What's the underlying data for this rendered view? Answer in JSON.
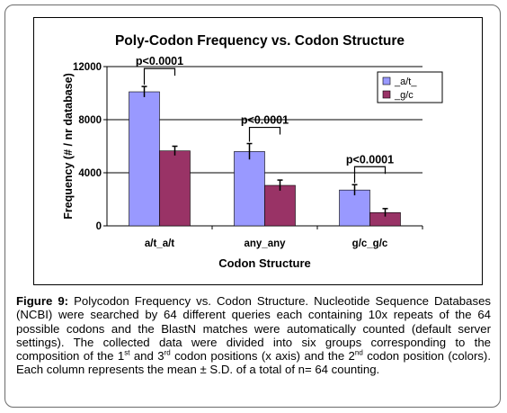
{
  "chart_data": {
    "type": "bar",
    "title": "Poly-Codon Frequency vs. Codon Structure",
    "xlabel": "Codon Structure",
    "ylabel": "Frequency (# / nr database)",
    "ylim": [
      0,
      12000
    ],
    "yticks": [
      "0",
      "4000",
      "8000",
      "12000"
    ],
    "ytick_values": [
      0,
      4000,
      8000,
      12000
    ],
    "grid": true,
    "legend_position": "top-right",
    "categories": [
      "a/t_a/t",
      "any_any",
      "g/c_g/c"
    ],
    "series": [
      {
        "name": "_a/t_",
        "color": "#9999ff",
        "values": [
          10100,
          5600,
          2700
        ],
        "errors": [
          400,
          600,
          400
        ]
      },
      {
        "name": "_g/c",
        "color": "#993366",
        "values": [
          5650,
          3050,
          1000
        ],
        "errors": [
          350,
          400,
          300
        ]
      }
    ],
    "annotations": [
      "p<0.0001",
      "p<0.0001",
      "p<0.0001"
    ]
  },
  "caption": {
    "label": "Figure 9:",
    "text_1": " Polycodon Frequency vs. Codon Structure. Nucleotide Sequence Databases (NCBI) were searched by 64 different queries each containing 10x repeats of the 64 possible codons and the BlastN matches were automatically counted (default server settings). The collected data were divided into six groups corresponding to the composition of the 1",
    "sup_1": "st",
    "text_2": " and 3",
    "sup_2": "rd",
    "text_3": " codon positions (x axis) and the 2",
    "sup_3": "nd",
    "text_4": " codon position (colors). Each column represents the mean ± S.D. of a total of n= 64 counting."
  }
}
